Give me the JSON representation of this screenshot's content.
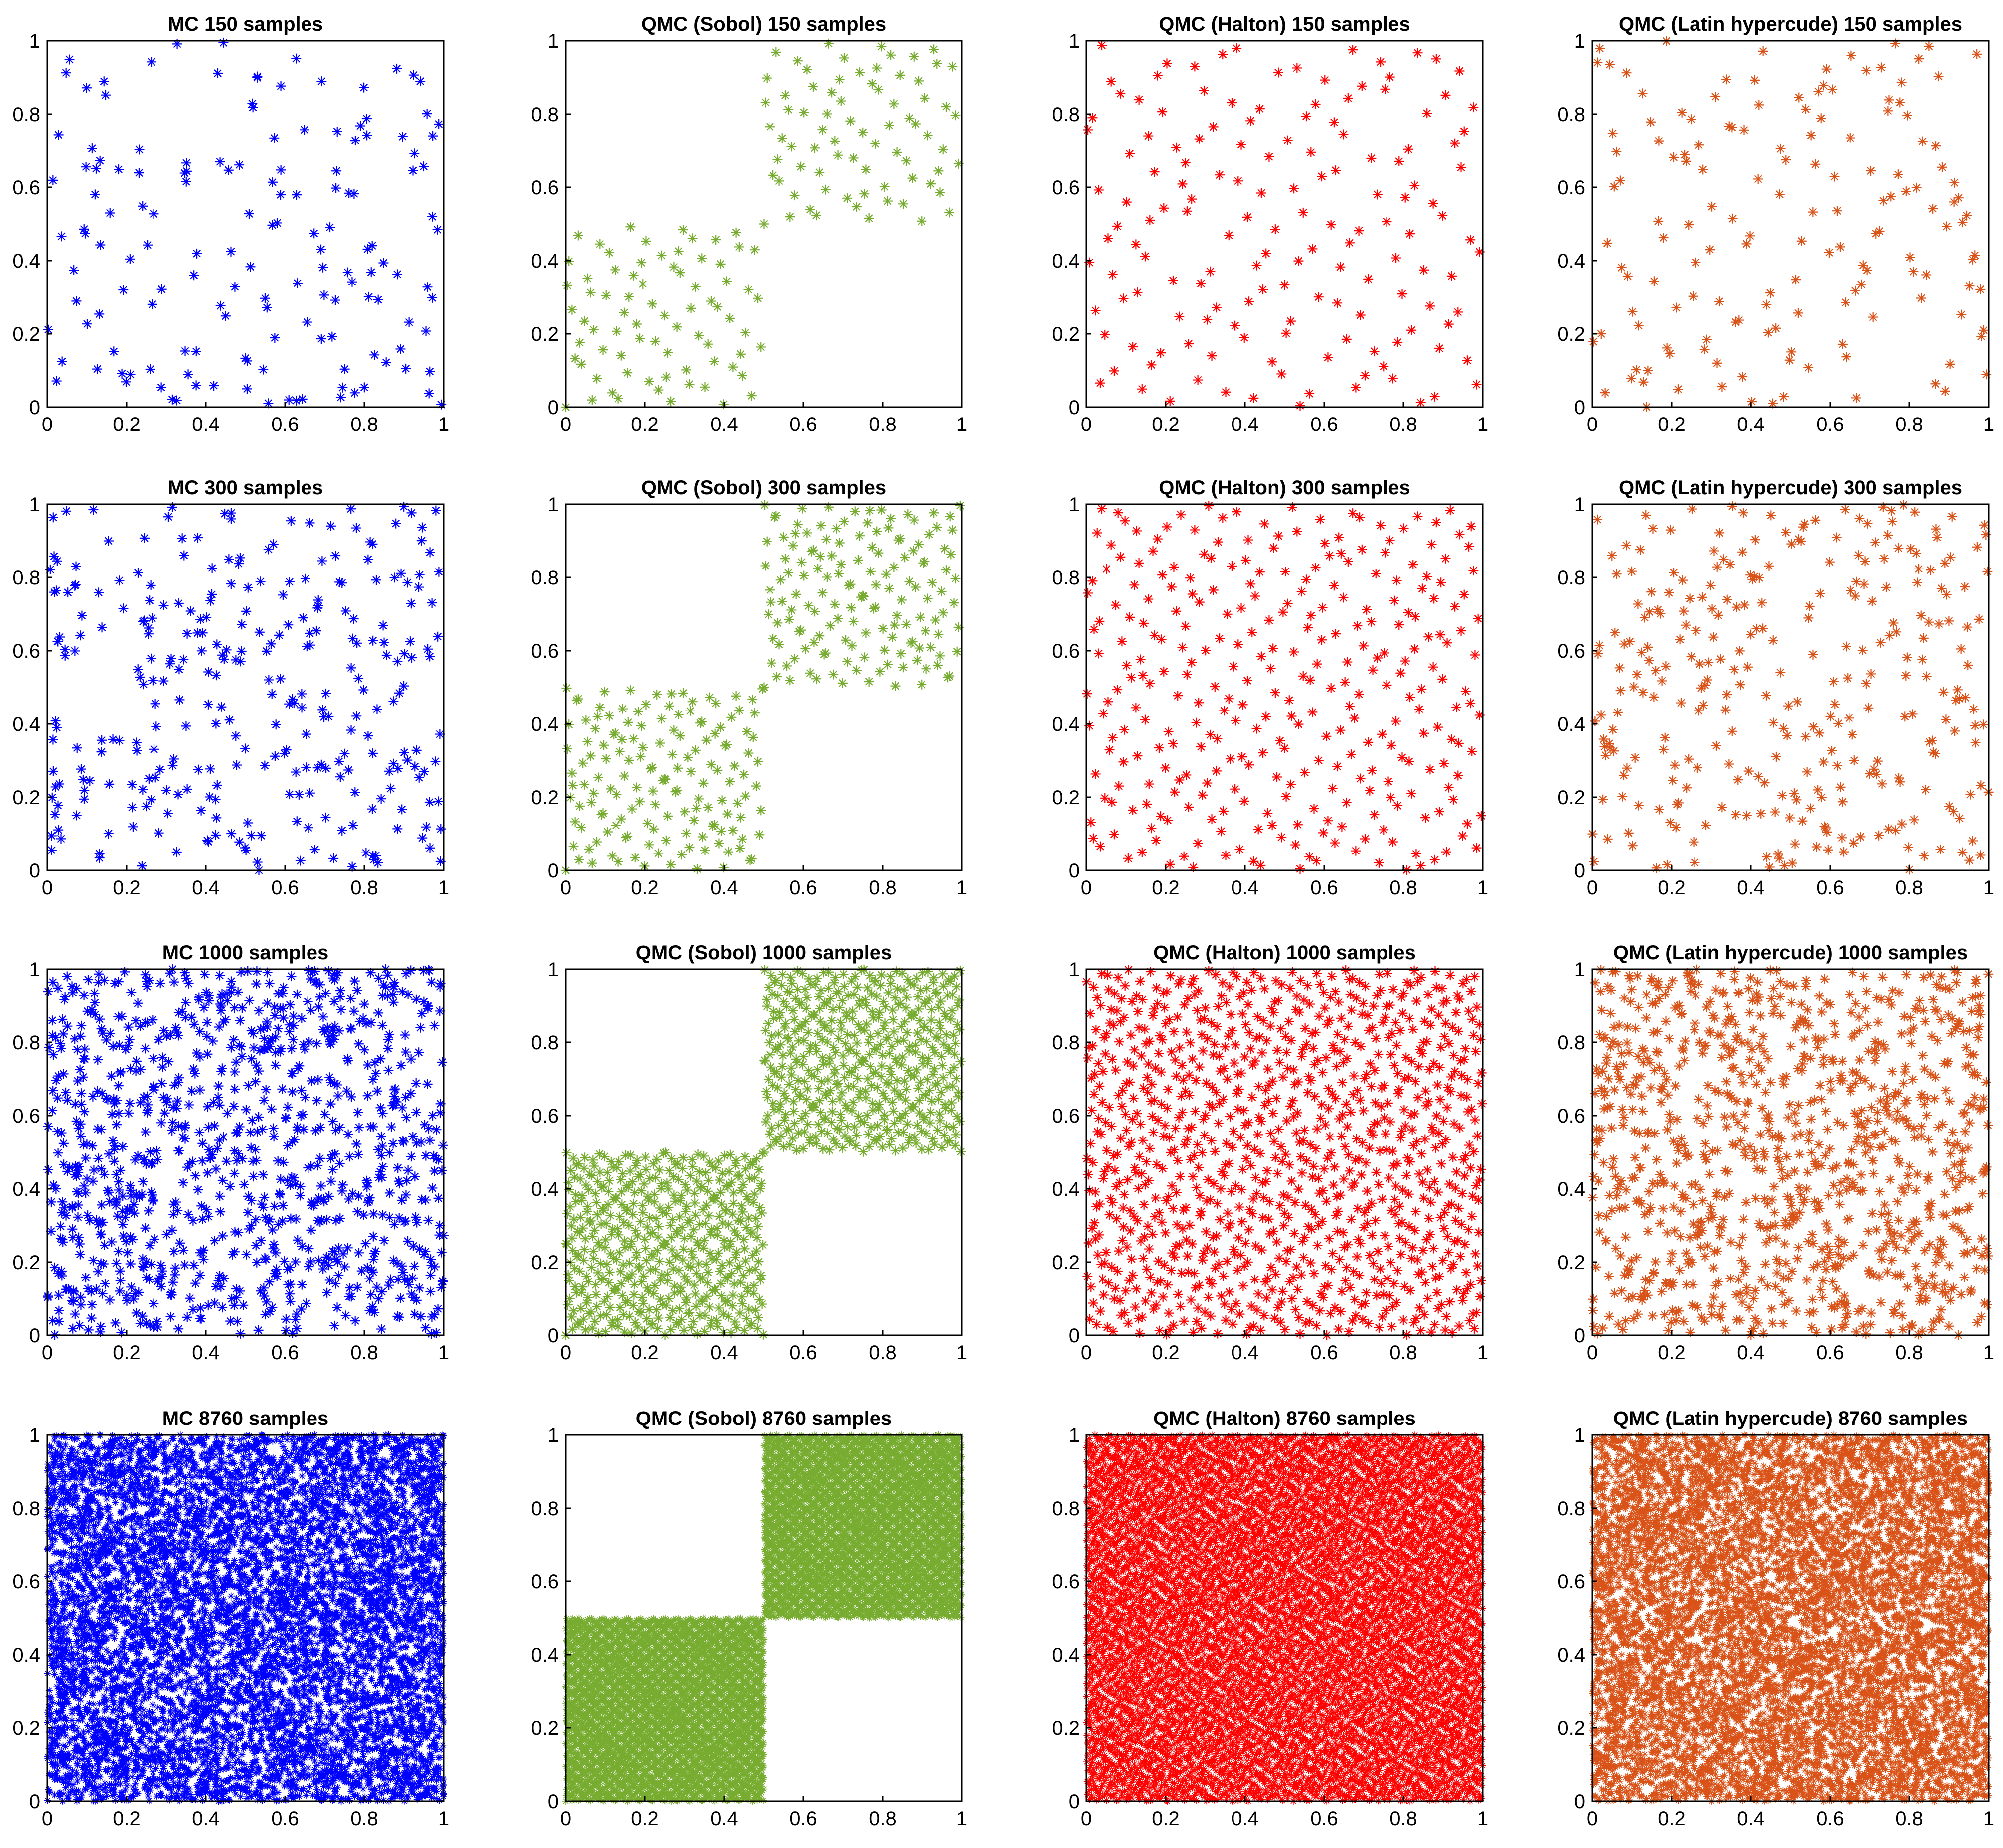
{
  "figure": {
    "rows": 4,
    "cols": 4
  },
  "chart_data": [
    {
      "type": "scatter",
      "title": "MC 150 samples",
      "method": "random",
      "n": 150,
      "color": "#0000FF",
      "marker": "*",
      "xlim": [
        0,
        1
      ],
      "ylim": [
        0,
        1
      ],
      "xticks": [
        "0",
        "0.2",
        "0.4",
        "0.6",
        "0.8",
        "1"
      ],
      "yticks": [
        "0",
        "0.2",
        "0.4",
        "0.6",
        "0.8",
        "1"
      ],
      "grid": false
    },
    {
      "type": "scatter",
      "title": "QMC (Sobol) 150 samples",
      "method": "sobol",
      "n": 150,
      "color": "#77AC30",
      "marker": "*",
      "xlim": [
        0,
        1
      ],
      "ylim": [
        0,
        1
      ],
      "xticks": [
        "0",
        "0.2",
        "0.4",
        "0.6",
        "0.8",
        "1"
      ],
      "yticks": [
        "0",
        "0.2",
        "0.4",
        "0.6",
        "0.8",
        "1"
      ],
      "grid": false
    },
    {
      "type": "scatter",
      "title": "QMC (Halton) 150 samples",
      "method": "halton",
      "n": 150,
      "color": "#FF0000",
      "marker": "*",
      "xlim": [
        0,
        1
      ],
      "ylim": [
        0,
        1
      ],
      "xticks": [
        "0",
        "0.2",
        "0.4",
        "0.6",
        "0.8",
        "1"
      ],
      "yticks": [
        "0",
        "0.2",
        "0.4",
        "0.6",
        "0.8",
        "1"
      ],
      "grid": false
    },
    {
      "type": "scatter",
      "title": "QMC (Latin hypercude) 150 samples",
      "method": "lhs",
      "n": 150,
      "color": "#D95319",
      "marker": "*",
      "xlim": [
        0,
        1
      ],
      "ylim": [
        0,
        1
      ],
      "xticks": [
        "0",
        "0.2",
        "0.4",
        "0.6",
        "0.8",
        "1"
      ],
      "yticks": [
        "0",
        "0.2",
        "0.4",
        "0.6",
        "0.8",
        "1"
      ],
      "grid": false
    },
    {
      "type": "scatter",
      "title": "MC 300 samples",
      "method": "random",
      "n": 300,
      "color": "#0000FF",
      "marker": "*",
      "xlim": [
        0,
        1
      ],
      "ylim": [
        0,
        1
      ],
      "xticks": [
        "0",
        "0.2",
        "0.4",
        "0.6",
        "0.8",
        "1"
      ],
      "yticks": [
        "0",
        "0.2",
        "0.4",
        "0.6",
        "0.8",
        "1"
      ],
      "grid": false
    },
    {
      "type": "scatter",
      "title": "QMC (Sobol) 300 samples",
      "method": "sobol",
      "n": 300,
      "color": "#77AC30",
      "marker": "*",
      "xlim": [
        0,
        1
      ],
      "ylim": [
        0,
        1
      ],
      "xticks": [
        "0",
        "0.2",
        "0.4",
        "0.6",
        "0.8",
        "1"
      ],
      "yticks": [
        "0",
        "0.2",
        "0.4",
        "0.6",
        "0.8",
        "1"
      ],
      "grid": false
    },
    {
      "type": "scatter",
      "title": "QMC (Halton) 300 samples",
      "method": "halton",
      "n": 300,
      "color": "#FF0000",
      "marker": "*",
      "xlim": [
        0,
        1
      ],
      "ylim": [
        0,
        1
      ],
      "xticks": [
        "0",
        "0.2",
        "0.4",
        "0.6",
        "0.8",
        "1"
      ],
      "yticks": [
        "0",
        "0.2",
        "0.4",
        "0.6",
        "0.8",
        "1"
      ],
      "grid": false
    },
    {
      "type": "scatter",
      "title": "QMC (Latin hypercude) 300 samples",
      "method": "lhs",
      "n": 300,
      "color": "#D95319",
      "marker": "*",
      "xlim": [
        0,
        1
      ],
      "ylim": [
        0,
        1
      ],
      "xticks": [
        "0",
        "0.2",
        "0.4",
        "0.6",
        "0.8",
        "1"
      ],
      "yticks": [
        "0",
        "0.2",
        "0.4",
        "0.6",
        "0.8",
        "1"
      ],
      "grid": false
    },
    {
      "type": "scatter",
      "title": "MC 1000 samples",
      "method": "random",
      "n": 1000,
      "color": "#0000FF",
      "marker": "*",
      "xlim": [
        0,
        1
      ],
      "ylim": [
        0,
        1
      ],
      "xticks": [
        "0",
        "0.2",
        "0.4",
        "0.6",
        "0.8",
        "1"
      ],
      "yticks": [
        "0",
        "0.2",
        "0.4",
        "0.6",
        "0.8",
        "1"
      ],
      "grid": false
    },
    {
      "type": "scatter",
      "title": "QMC (Sobol) 1000 samples",
      "method": "sobol",
      "n": 1000,
      "color": "#77AC30",
      "marker": "*",
      "xlim": [
        0,
        1
      ],
      "ylim": [
        0,
        1
      ],
      "xticks": [
        "0",
        "0.2",
        "0.4",
        "0.6",
        "0.8",
        "1"
      ],
      "yticks": [
        "0",
        "0.2",
        "0.4",
        "0.6",
        "0.8",
        "1"
      ],
      "grid": false
    },
    {
      "type": "scatter",
      "title": "QMC (Halton) 1000 samples",
      "method": "halton",
      "n": 1000,
      "color": "#FF0000",
      "marker": "*",
      "xlim": [
        0,
        1
      ],
      "ylim": [
        0,
        1
      ],
      "xticks": [
        "0",
        "0.2",
        "0.4",
        "0.6",
        "0.8",
        "1"
      ],
      "yticks": [
        "0",
        "0.2",
        "0.4",
        "0.6",
        "0.8",
        "1"
      ],
      "grid": false
    },
    {
      "type": "scatter",
      "title": "QMC (Latin hypercude) 1000 samples",
      "method": "lhs",
      "n": 1000,
      "color": "#D95319",
      "marker": "*",
      "xlim": [
        0,
        1
      ],
      "ylim": [
        0,
        1
      ],
      "xticks": [
        "0",
        "0.2",
        "0.4",
        "0.6",
        "0.8",
        "1"
      ],
      "yticks": [
        "0",
        "0.2",
        "0.4",
        "0.6",
        "0.8",
        "1"
      ],
      "grid": false
    },
    {
      "type": "scatter",
      "title": "MC 8760 samples",
      "method": "random",
      "n": 8760,
      "color": "#0000FF",
      "marker": "*",
      "xlim": [
        0,
        1
      ],
      "ylim": [
        0,
        1
      ],
      "xticks": [
        "0",
        "0.2",
        "0.4",
        "0.6",
        "0.8",
        "1"
      ],
      "yticks": [
        "0",
        "0.2",
        "0.4",
        "0.6",
        "0.8",
        "1"
      ],
      "grid": false
    },
    {
      "type": "scatter",
      "title": "QMC (Sobol) 8760 samples",
      "method": "sobol",
      "n": 8760,
      "color": "#77AC30",
      "marker": "*",
      "xlim": [
        0,
        1
      ],
      "ylim": [
        0,
        1
      ],
      "xticks": [
        "0",
        "0.2",
        "0.4",
        "0.6",
        "0.8",
        "1"
      ],
      "yticks": [
        "0",
        "0.2",
        "0.4",
        "0.6",
        "0.8",
        "1"
      ],
      "grid": false
    },
    {
      "type": "scatter",
      "title": "QMC (Halton) 8760 samples",
      "method": "halton",
      "n": 8760,
      "color": "#FF0000",
      "marker": "*",
      "xlim": [
        0,
        1
      ],
      "ylim": [
        0,
        1
      ],
      "xticks": [
        "0",
        "0.2",
        "0.4",
        "0.6",
        "0.8",
        "1"
      ],
      "yticks": [
        "0",
        "0.2",
        "0.4",
        "0.6",
        "0.8",
        "1"
      ],
      "grid": false
    },
    {
      "type": "scatter",
      "title": "QMC (Latin hypercude) 8760 samples",
      "method": "lhs",
      "n": 8760,
      "color": "#D95319",
      "marker": "*",
      "xlim": [
        0,
        1
      ],
      "ylim": [
        0,
        1
      ],
      "xticks": [
        "0",
        "0.2",
        "0.4",
        "0.6",
        "0.8",
        "1"
      ],
      "yticks": [
        "0",
        "0.2",
        "0.4",
        "0.6",
        "0.8",
        "1"
      ],
      "grid": false
    }
  ]
}
